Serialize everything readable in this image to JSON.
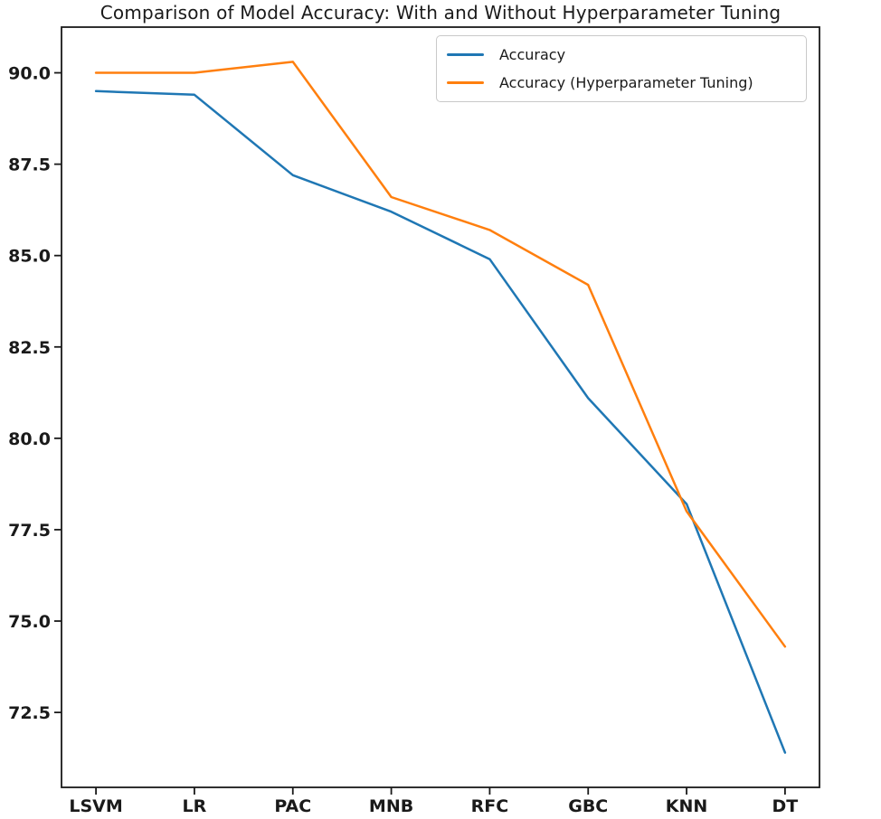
{
  "chart_data": {
    "type": "line",
    "title": "Comparison of Model Accuracy: With and Without Hyperparameter Tuning",
    "categories": [
      "LSVM",
      "LR",
      "PAC",
      "MNB",
      "RFC",
      "GBC",
      "KNN",
      "DT"
    ],
    "series": [
      {
        "name": "Accuracy",
        "color": "#1f77b4",
        "values": [
          89.5,
          89.4,
          87.2,
          86.2,
          84.9,
          81.1,
          78.2,
          71.4
        ]
      },
      {
        "name": "Accuracy (Hyperparameter Tuning)",
        "color": "#ff7f0e",
        "values": [
          90.0,
          90.0,
          90.3,
          86.6,
          85.7,
          84.2,
          78.0,
          74.3
        ]
      }
    ],
    "ytick_labels": [
      "90.0",
      "87.5",
      "85.0",
      "82.5",
      "80.0",
      "77.5",
      "75.0",
      "72.5"
    ],
    "yticks": [
      90.0,
      87.5,
      85.0,
      82.5,
      80.0,
      77.5,
      75.0,
      72.5
    ],
    "ylim": [
      70.45,
      91.25
    ],
    "xlabel": "",
    "ylabel": "",
    "legend_position": "upper right",
    "grid": false,
    "frame_color": "#1a1a1a"
  }
}
